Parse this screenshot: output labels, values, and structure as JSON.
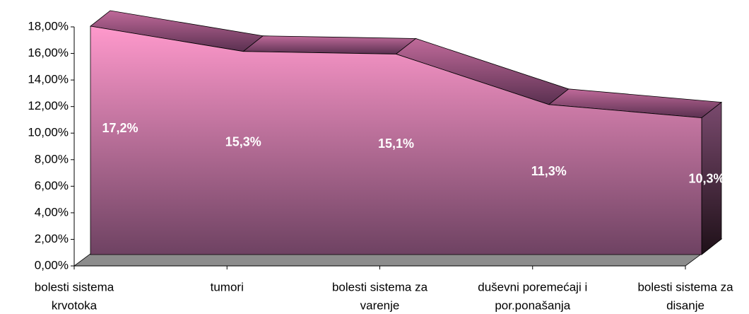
{
  "chart_data": {
    "type": "area3d",
    "categories": [
      [
        "bolesti sistema",
        "krvotoka"
      ],
      [
        "tumori"
      ],
      [
        "bolesti sistema za",
        "varenje"
      ],
      [
        "duševni poremećaji i",
        "por.ponašanja"
      ],
      [
        "bolesti sistema za",
        "disanje"
      ]
    ],
    "values": [
      17.2,
      15.3,
      15.1,
      11.3,
      10.3
    ],
    "value_labels": [
      "17,2%",
      "15,3%",
      "15,1%",
      "11,3%",
      "10,3%"
    ],
    "color": "#ff99cc",
    "ylim": [
      0,
      18
    ],
    "yticks": [
      {
        "value": 0,
        "label": "0,00%"
      },
      {
        "value": 2,
        "label": "2,00%"
      },
      {
        "value": 4,
        "label": "4,00%"
      },
      {
        "value": 6,
        "label": "6,00%"
      },
      {
        "value": 8,
        "label": "8,00%"
      },
      {
        "value": 10,
        "label": "10,00%"
      },
      {
        "value": 12,
        "label": "12,00%"
      },
      {
        "value": 14,
        "label": "14,00%"
      },
      {
        "value": 16,
        "label": "16,00%"
      },
      {
        "value": 18,
        "label": "18,00%"
      }
    ]
  }
}
